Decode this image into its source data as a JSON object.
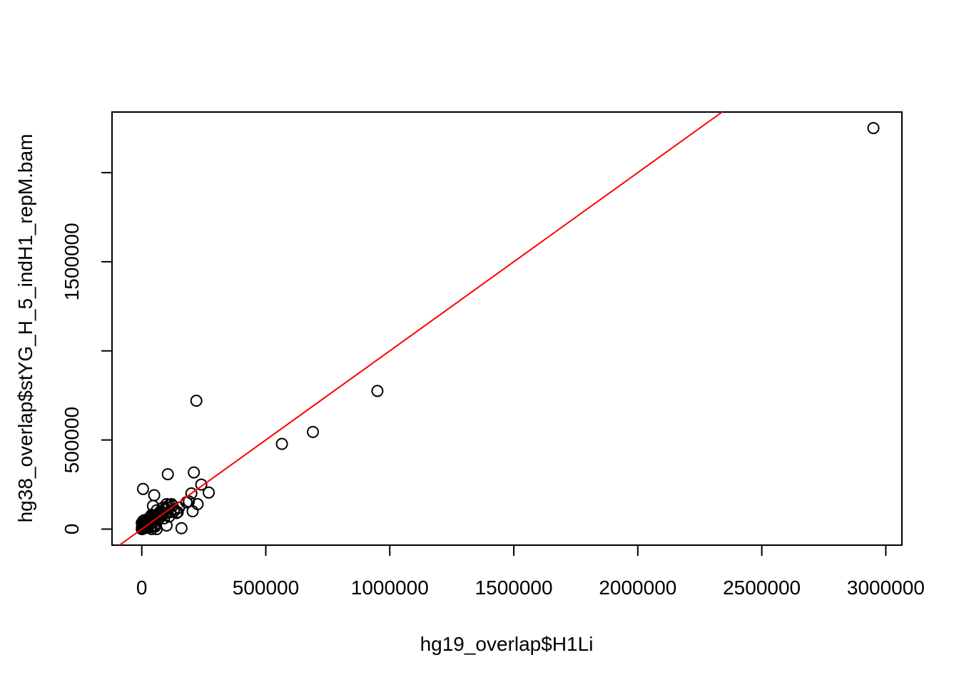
{
  "chart_data": {
    "type": "scatter",
    "title": "",
    "xlabel": "hg19_overlap$H1Li",
    "ylabel": "hg38_overlap$stYG_H_5_indH1_repM.bam",
    "xlim": [
      -120000,
      3065000
    ],
    "ylim": [
      -90000,
      2340000
    ],
    "x_ticks": [
      0,
      500000,
      1000000,
      1500000,
      2000000,
      2500000,
      3000000
    ],
    "x_tick_labels": [
      "0",
      "500000",
      "1000000",
      "1500000",
      "2000000",
      "2500000",
      "3000000"
    ],
    "y_ticks": [
      0,
      500000,
      1000000,
      1500000,
      2000000
    ],
    "y_tick_labels": [
      "0",
      "500000",
      "",
      "1500000",
      ""
    ],
    "grid": false,
    "point_style": "open-circle",
    "point_color": "#000000",
    "regression_line": {
      "intercept": 0,
      "slope": 1,
      "color": "#ff0000"
    },
    "points": [
      [
        2950000,
        2250000
      ],
      [
        950000,
        775000
      ],
      [
        690000,
        545000
      ],
      [
        565000,
        478000
      ],
      [
        220000,
        720000
      ],
      [
        105000,
        308000
      ],
      [
        210000,
        318000
      ],
      [
        5000,
        225000
      ],
      [
        50000,
        190000
      ],
      [
        240000,
        250000
      ],
      [
        270000,
        205000
      ],
      [
        200000,
        200000
      ],
      [
        225000,
        140000
      ],
      [
        205000,
        100000
      ],
      [
        160000,
        5000
      ],
      [
        190000,
        155000
      ],
      [
        180000,
        150000
      ],
      [
        150000,
        120000
      ],
      [
        140000,
        90000
      ],
      [
        130000,
        110000
      ],
      [
        125000,
        130000
      ],
      [
        120000,
        140000
      ],
      [
        115000,
        95000
      ],
      [
        110000,
        135000
      ],
      [
        100000,
        140000
      ],
      [
        105000,
        120000
      ],
      [
        100000,
        90000
      ],
      [
        95000,
        115000
      ],
      [
        90000,
        110000
      ],
      [
        85000,
        120000
      ],
      [
        80000,
        75000
      ],
      [
        90000,
        60000
      ],
      [
        100000,
        20000
      ],
      [
        75000,
        80000
      ],
      [
        70000,
        85000
      ],
      [
        65000,
        55000
      ],
      [
        60000,
        105000
      ],
      [
        55000,
        60000
      ],
      [
        45000,
        130000
      ],
      [
        50000,
        75000
      ],
      [
        60000,
        0
      ],
      [
        55000,
        15000
      ],
      [
        50000,
        40000
      ],
      [
        45000,
        60000
      ],
      [
        40000,
        50000
      ],
      [
        40000,
        80000
      ],
      [
        35000,
        30000
      ],
      [
        35000,
        70000
      ],
      [
        30000,
        40000
      ],
      [
        30000,
        20000
      ],
      [
        28000,
        60000
      ],
      [
        25000,
        50000
      ],
      [
        25000,
        30000
      ],
      [
        22000,
        10000
      ],
      [
        20000,
        45000
      ],
      [
        20000,
        25000
      ],
      [
        18000,
        35000
      ],
      [
        15000,
        40000
      ],
      [
        15000,
        15000
      ],
      [
        12000,
        30000
      ],
      [
        12000,
        5000
      ],
      [
        10000,
        50000
      ],
      [
        10000,
        20000
      ],
      [
        8000,
        35000
      ],
      [
        8000,
        10000
      ],
      [
        6000,
        25000
      ],
      [
        5000,
        45000
      ],
      [
        5000,
        5000
      ],
      [
        4000,
        15000
      ],
      [
        3000,
        30000
      ],
      [
        2000,
        20000
      ],
      [
        2000,
        0
      ],
      [
        1000,
        10000
      ],
      [
        0,
        35000
      ],
      [
        0,
        0
      ],
      [
        65000,
        85000
      ],
      [
        70000,
        60000
      ],
      [
        75000,
        100000
      ],
      [
        130000,
        100000
      ],
      [
        145000,
        95000
      ],
      [
        110000,
        70000
      ],
      [
        40000,
        0
      ],
      [
        35000,
        10000
      ],
      [
        50000,
        20000
      ]
    ]
  }
}
